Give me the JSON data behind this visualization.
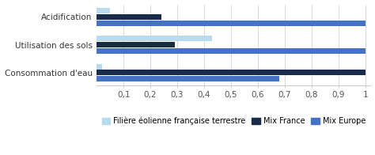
{
  "categories": [
    "Consommation d'eau",
    "Utilisation des sols",
    "Acidification"
  ],
  "series": {
    "Filière éolienne française terrestre": [
      0.02,
      0.43,
      0.05
    ],
    "Mix France": [
      1.0,
      0.29,
      0.24
    ],
    "Mix Europe": [
      0.68,
      1.0,
      1.0
    ]
  },
  "colors": {
    "Filière éolienne française terrestre": "#b8dced",
    "Mix France": "#1a2b4a",
    "Mix Europe": "#4472c4"
  },
  "bar_height": 0.22,
  "xlim": [
    0,
    1.02
  ],
  "xticks": [
    0.1,
    0.2,
    0.3,
    0.4,
    0.5,
    0.6,
    0.7,
    0.8,
    0.9,
    1.0
  ],
  "xtick_labels": [
    "0,1",
    "0,2",
    "0,3",
    "0,4",
    "0,5",
    "0,6",
    "0,7",
    "0,8",
    "0,9",
    "1"
  ],
  "legend_labels": [
    "Filière éolienne française terrestre",
    "Mix France",
    "Mix Europe"
  ],
  "font_size": 7.5,
  "background_color": "#ffffff"
}
